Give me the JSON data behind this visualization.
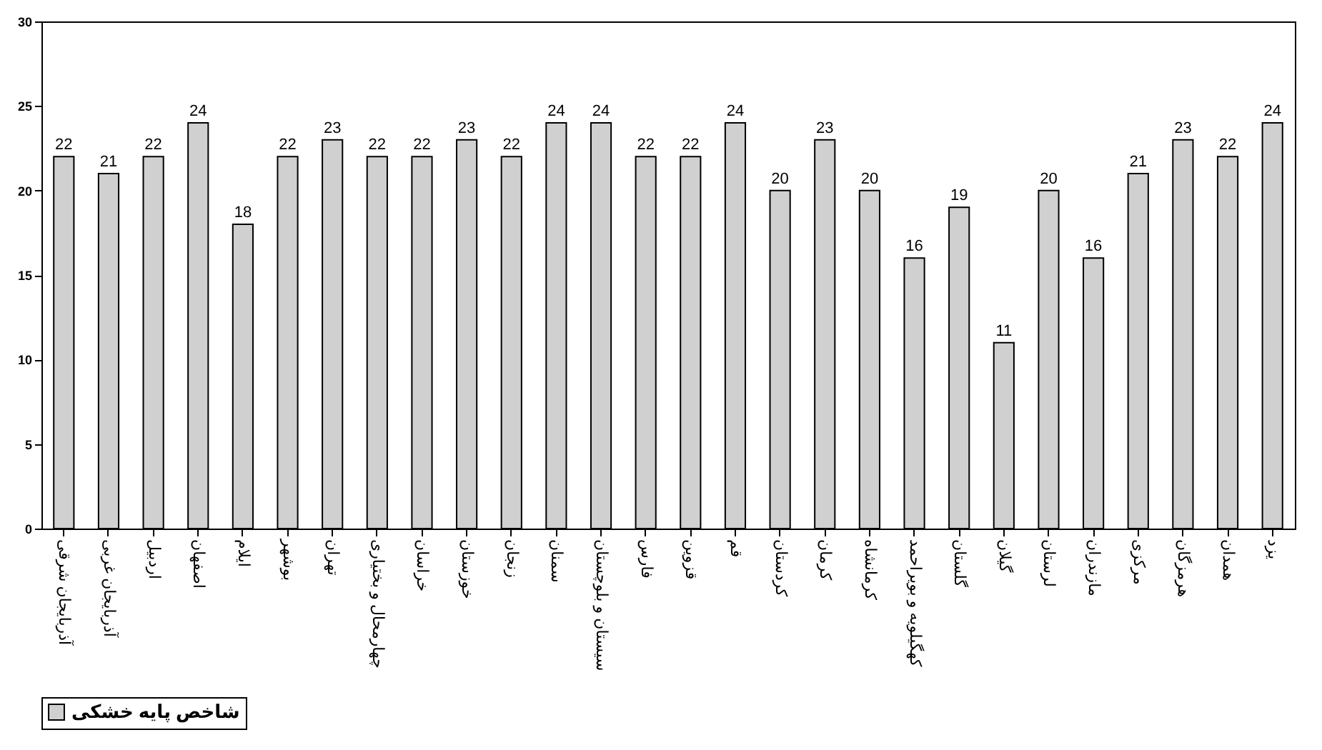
{
  "chart_data": {
    "type": "bar",
    "categories": [
      "آذربایجان شرقی",
      "آذربایجان غربی",
      "اردبیل",
      "اصفهان",
      "ایلام",
      "بوشهر",
      "تهران",
      "چهارمحال و بختیاری",
      "خراسان",
      "خوزستان",
      "زنجان",
      "سمنان",
      "سیستان و بلوچستان",
      "فارس",
      "قزوین",
      "قم",
      "کردستان",
      "کرمان",
      "کرمانشاه",
      "کهگیلویه و بویراحمد",
      "گلستان",
      "گیلان",
      "لرستان",
      "مازندران",
      "مرکزی",
      "هرمزگان",
      "همدان",
      "یزد"
    ],
    "series": [
      {
        "name": "شاخص پایه خشکی",
        "color": "#d0d0d0",
        "values": [
          22,
          21,
          22,
          24,
          18,
          22,
          23,
          22,
          22,
          23,
          22,
          24,
          24,
          22,
          22,
          24,
          20,
          23,
          20,
          16,
          19,
          11,
          20,
          16,
          21,
          23,
          22,
          24
        ]
      }
    ],
    "ylim": [
      0,
      30
    ],
    "yticks": [
      0,
      5,
      10,
      15,
      20,
      25,
      30
    ],
    "grid": false,
    "data_labels": true,
    "legend": "bottom"
  }
}
